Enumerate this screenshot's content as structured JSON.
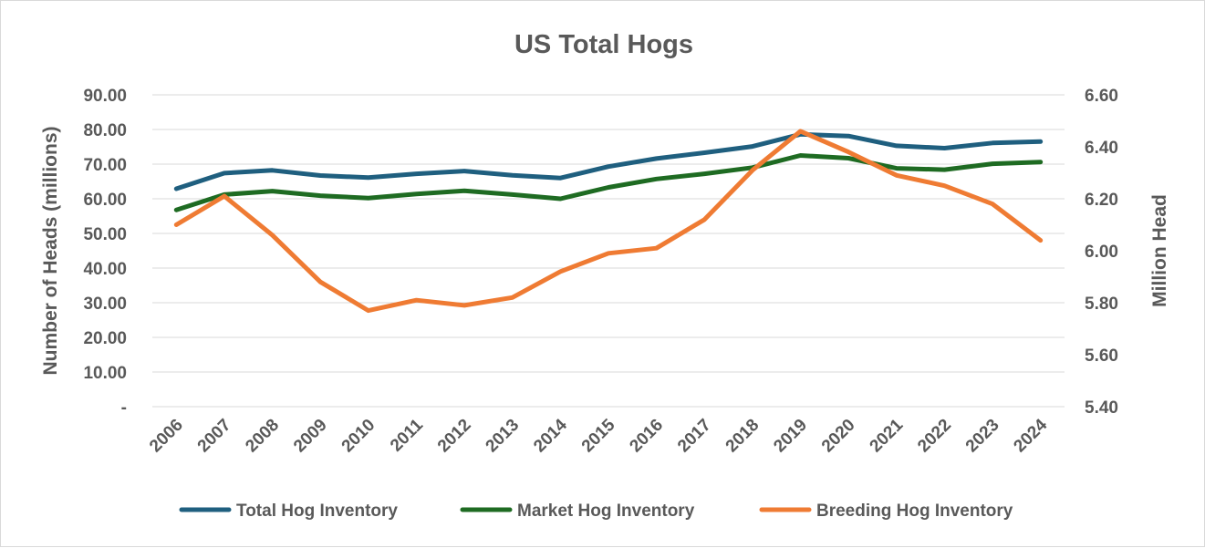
{
  "chart_data": {
    "type": "line",
    "title": "US Total Hogs",
    "ylabel_left": "Number of Heads (millions)",
    "ylabel_right": "Million Head",
    "x": [
      "2006",
      "2007",
      "2008",
      "2009",
      "2010",
      "2011",
      "2012",
      "2013",
      "2014",
      "2015",
      "2016",
      "2017",
      "2018",
      "2019",
      "2020",
      "2021",
      "2022",
      "2023",
      "2024"
    ],
    "ylim_left": [
      0,
      90
    ],
    "ylim_right": [
      5.4,
      6.6
    ],
    "left_ticks": [
      "-",
      "10.00",
      "20.00",
      "30.00",
      "40.00",
      "50.00",
      "60.00",
      "70.00",
      "80.00",
      "90.00"
    ],
    "right_ticks": [
      "5.40",
      "5.60",
      "5.80",
      "6.00",
      "6.20",
      "6.40",
      "6.60"
    ],
    "grid": true,
    "legend_position": "bottom",
    "series": [
      {
        "name": "Total Hog Inventory",
        "axis": "left",
        "color": "#1f5f7f",
        "values": [
          62.9,
          67.4,
          68.2,
          66.7,
          66.1,
          67.2,
          68.0,
          66.8,
          66.0,
          69.3,
          71.6,
          73.3,
          75.1,
          78.6,
          78.1,
          75.3,
          74.6,
          76.1,
          76.5
        ]
      },
      {
        "name": "Market Hog Inventory",
        "axis": "left",
        "color": "#1e6b22",
        "values": [
          56.8,
          61.2,
          62.2,
          60.9,
          60.2,
          61.4,
          62.3,
          61.2,
          60.0,
          63.3,
          65.7,
          67.2,
          69.0,
          72.5,
          71.7,
          68.8,
          68.4,
          70.1,
          70.6
        ]
      },
      {
        "name": "Breeding Hog Inventory",
        "axis": "right",
        "color": "#ef7b33",
        "values": [
          6.1,
          6.21,
          6.06,
          5.88,
          5.77,
          5.81,
          5.79,
          5.82,
          5.92,
          5.99,
          6.01,
          6.12,
          6.31,
          6.46,
          6.38,
          6.29,
          6.25,
          6.18,
          6.04
        ]
      }
    ]
  }
}
